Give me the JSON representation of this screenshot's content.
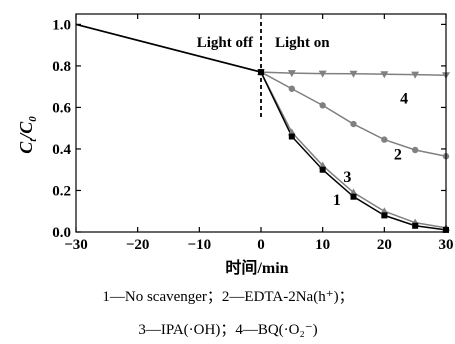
{
  "chart_data": {
    "type": "line",
    "ylabel": "Ct/C0",
    "xlabel_cn": "时间",
    "xlabel_unit": "/min",
    "xlim": [
      -30,
      30
    ],
    "ylim": [
      0.0,
      1.05
    ],
    "x_ticks": [
      -30,
      -20,
      -10,
      0,
      10,
      20,
      30
    ],
    "x_tick_labels": [
      "−30",
      "−20",
      "−10",
      "0",
      "10",
      "20",
      "30"
    ],
    "y_ticks": [
      0.0,
      0.2,
      0.4,
      0.6,
      0.8,
      1.0
    ],
    "y_tick_labels": [
      "0.0",
      "0.2",
      "0.4",
      "0.6",
      "0.8",
      "1.0"
    ],
    "grid": false,
    "annotations": {
      "light_off": "Light off",
      "light_on": "Light on",
      "divider_x": 0
    },
    "series": [
      {
        "name": "1",
        "marker": "square",
        "color": "#000000",
        "label_pos": [
          12.3,
          0.13
        ],
        "x": [
          -30,
          0,
          5,
          10,
          15,
          20,
          25,
          30
        ],
        "y": [
          1.0,
          0.77,
          0.46,
          0.3,
          0.17,
          0.08,
          0.03,
          0.01
        ]
      },
      {
        "name": "2",
        "marker": "circle",
        "color": "#808080",
        "label_pos": [
          22.2,
          0.35
        ],
        "x": [
          -30,
          0,
          5,
          10,
          15,
          20,
          25,
          30
        ],
        "y": [
          1.0,
          0.77,
          0.69,
          0.61,
          0.52,
          0.445,
          0.395,
          0.365
        ]
      },
      {
        "name": "3",
        "marker": "triangle-up",
        "color": "#808080",
        "label_pos": [
          14.0,
          0.24
        ],
        "x": [
          -30,
          0,
          5,
          10,
          15,
          20,
          25,
          30
        ],
        "y": [
          1.0,
          0.77,
          0.48,
          0.32,
          0.19,
          0.1,
          0.045,
          0.02
        ]
      },
      {
        "name": "4",
        "marker": "triangle-down",
        "color": "#808080",
        "label_pos": [
          23.2,
          0.62
        ],
        "x": [
          -30,
          0,
          5,
          10,
          15,
          20,
          25,
          30
        ],
        "y": [
          1.0,
          0.77,
          0.765,
          0.763,
          0.762,
          0.76,
          0.758,
          0.755
        ]
      }
    ]
  },
  "caption": {
    "line1": "1—No scavenger；2—EDTA-2Na(h⁺)；",
    "line2": "3—IPA(·OH)；4—BQ(·O₂⁻)"
  }
}
